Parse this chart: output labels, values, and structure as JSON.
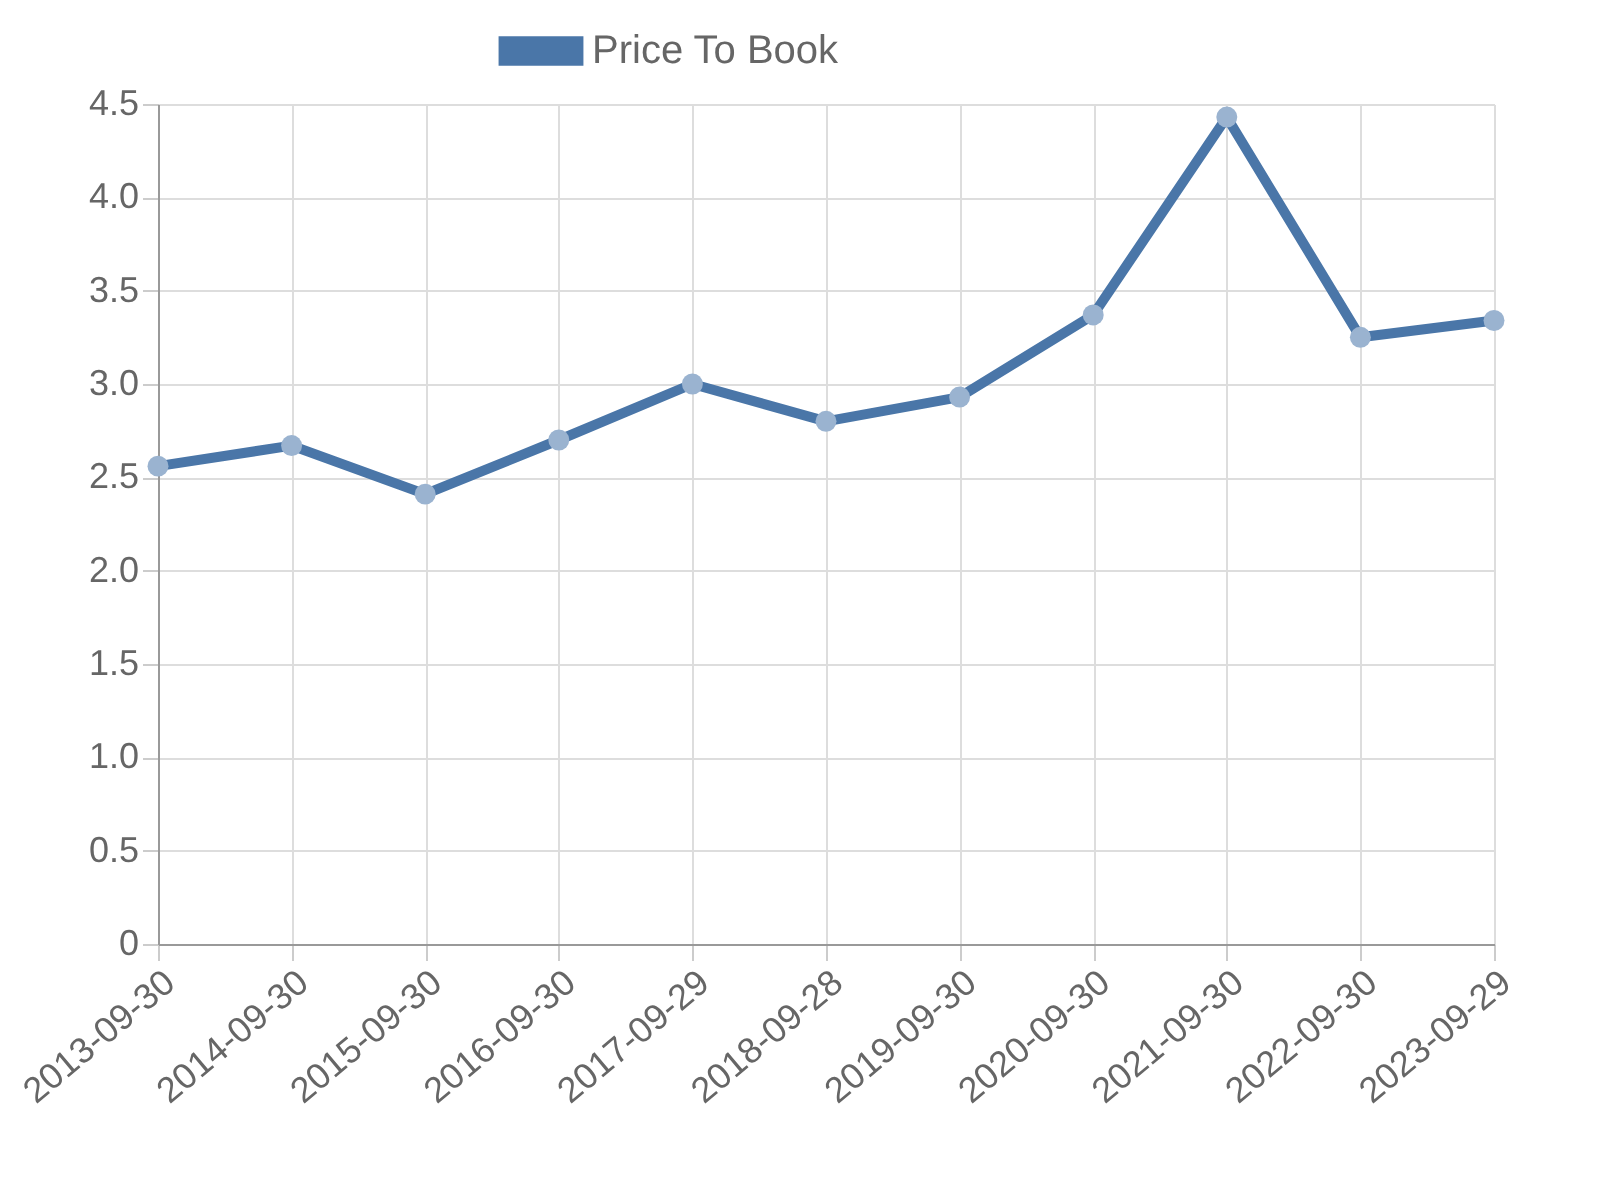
{
  "chart_data": {
    "type": "line",
    "categories": [
      "2013-09-30",
      "2014-09-30",
      "2015-09-30",
      "2016-09-30",
      "2017-09-29",
      "2018-09-28",
      "2019-09-30",
      "2020-09-30",
      "2021-09-30",
      "2022-09-30",
      "2023-09-29"
    ],
    "series": [
      {
        "name": "Price To Book",
        "color": "#4a76a8",
        "values": [
          2.56,
          2.67,
          2.41,
          2.7,
          3.0,
          2.8,
          2.93,
          3.37,
          4.43,
          3.25,
          3.34
        ]
      }
    ],
    "ylim": [
      0,
      4.5
    ],
    "yticks": [
      0,
      0.5,
      {
        "value": 1,
        "label": "1.0"
      },
      1.5,
      {
        "value": 2,
        "label": "2.0"
      },
      2.5,
      {
        "value": 3,
        "label": "3.0"
      },
      3.5,
      {
        "value": 4,
        "label": "4.0"
      },
      4.5
    ],
    "grid": true,
    "legend": "top",
    "marker": "circle",
    "line_style": "solid"
  }
}
